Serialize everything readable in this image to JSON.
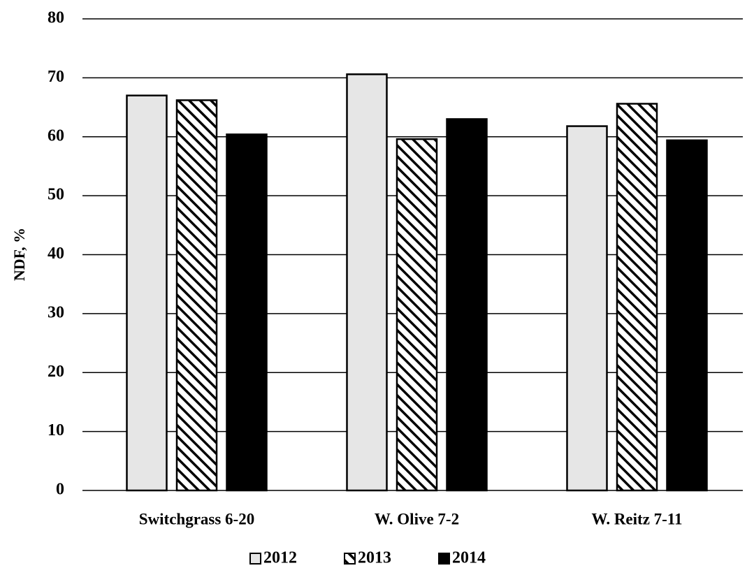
{
  "chart_data": {
    "type": "bar",
    "y_label": "NDF, %",
    "categories": [
      "Switchgrass 6-20",
      "W. Olive 7-2",
      "W. Reitz 7-11"
    ],
    "series": [
      {
        "name": "2012",
        "color": "#e6e6e6",
        "values": [
          67.0,
          70.6,
          61.8
        ]
      },
      {
        "name": "2013",
        "color": "#ffffff",
        "pattern": "diagonal",
        "values": [
          66.2,
          59.6,
          65.6
        ]
      },
      {
        "name": "2014",
        "color": "#000000",
        "values": [
          60.4,
          63.0,
          59.4
        ]
      }
    ],
    "ylim": [
      0,
      80
    ],
    "yticks": [
      0,
      10,
      20,
      30,
      40,
      50,
      60,
      70,
      80
    ],
    "grid": true,
    "legend": "bottom"
  }
}
